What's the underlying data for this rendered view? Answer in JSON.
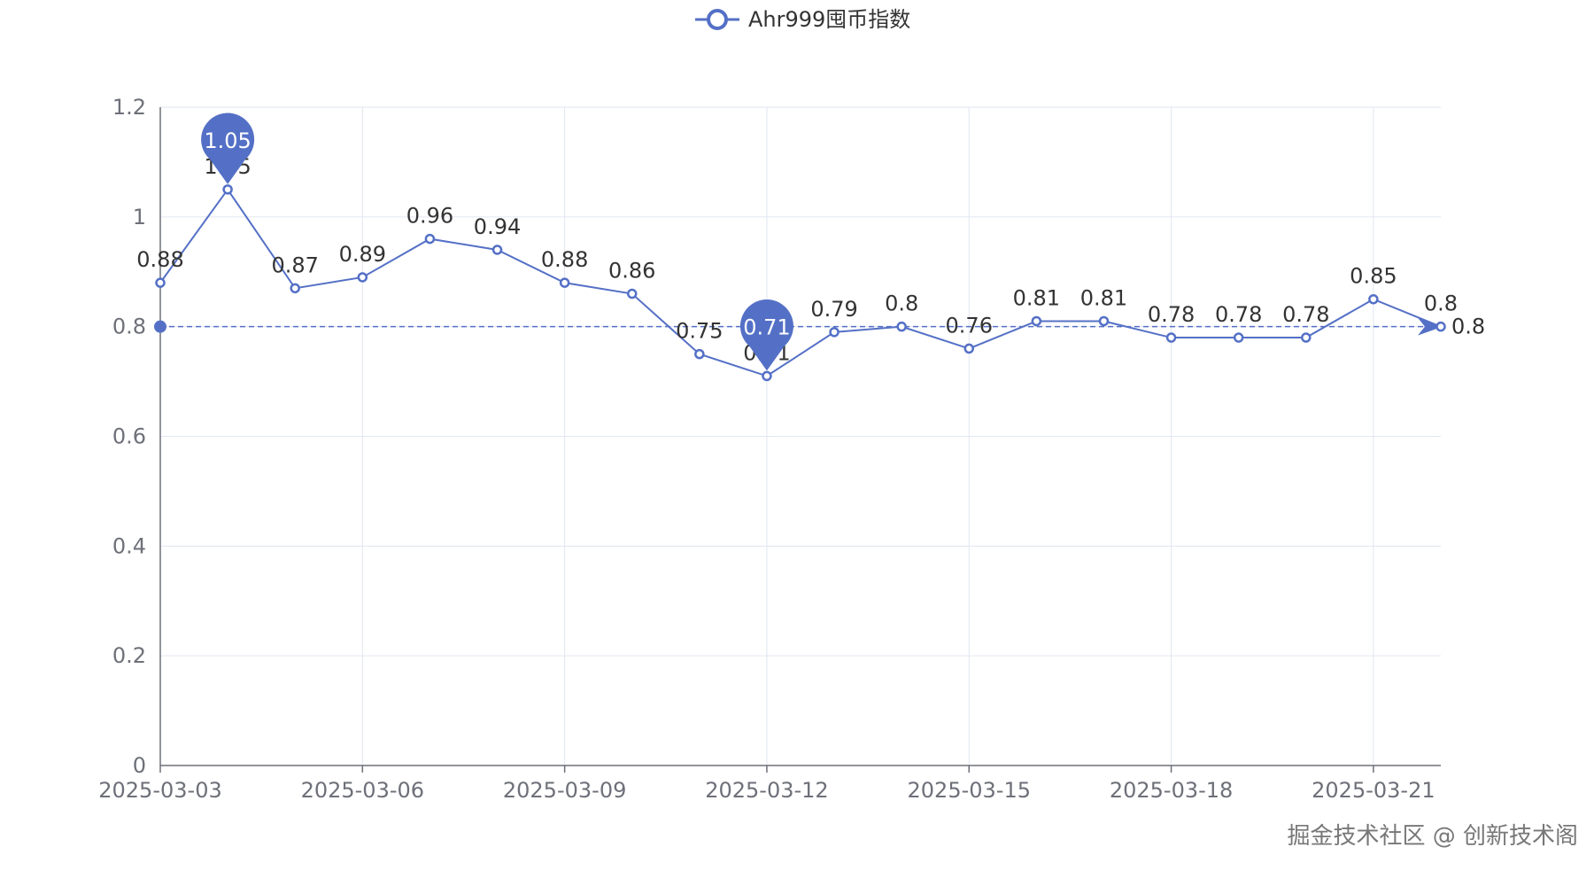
{
  "watermark": "掘金技术社区 @ 创新技术阁",
  "colors": {
    "series": "#5470c6",
    "grid": "#e0e6f1",
    "axis": "#6e7079",
    "label": "#333333"
  },
  "chart_data": {
    "type": "line",
    "x": [
      "2025-03-03",
      "2025-03-04",
      "2025-03-05",
      "2025-03-06",
      "2025-03-07",
      "2025-03-08",
      "2025-03-09",
      "2025-03-10",
      "2025-03-11",
      "2025-03-12",
      "2025-03-13",
      "2025-03-14",
      "2025-03-15",
      "2025-03-16",
      "2025-03-17",
      "2025-03-18",
      "2025-03-19",
      "2025-03-20",
      "2025-03-21",
      "2025-03-22"
    ],
    "x_tick_labels": [
      "2025-03-03",
      "2025-03-06",
      "2025-03-09",
      "2025-03-12",
      "2025-03-15",
      "2025-03-18",
      "2025-03-21"
    ],
    "series": [
      {
        "name": "Ahr999囤币指数",
        "values": [
          0.88,
          1.05,
          0.87,
          0.89,
          0.96,
          0.94,
          0.88,
          0.86,
          0.75,
          0.71,
          0.79,
          0.8,
          0.76,
          0.81,
          0.81,
          0.78,
          0.78,
          0.78,
          0.85,
          0.8
        ]
      }
    ],
    "y_ticks": [
      "0",
      "0.2",
      "0.4",
      "0.6",
      "0.8",
      "1",
      "1.2"
    ],
    "ylim": [
      0,
      1.2
    ],
    "markpoints": [
      {
        "type": "max",
        "x": "2025-03-04",
        "value": 1.05,
        "label": "1.05"
      },
      {
        "type": "min",
        "x": "2025-03-12",
        "value": 0.71,
        "label": "0.71"
      }
    ],
    "markline": {
      "type": "average",
      "value": 0.8,
      "label": "0.8"
    },
    "grid": true,
    "legend_position": "top-center"
  }
}
